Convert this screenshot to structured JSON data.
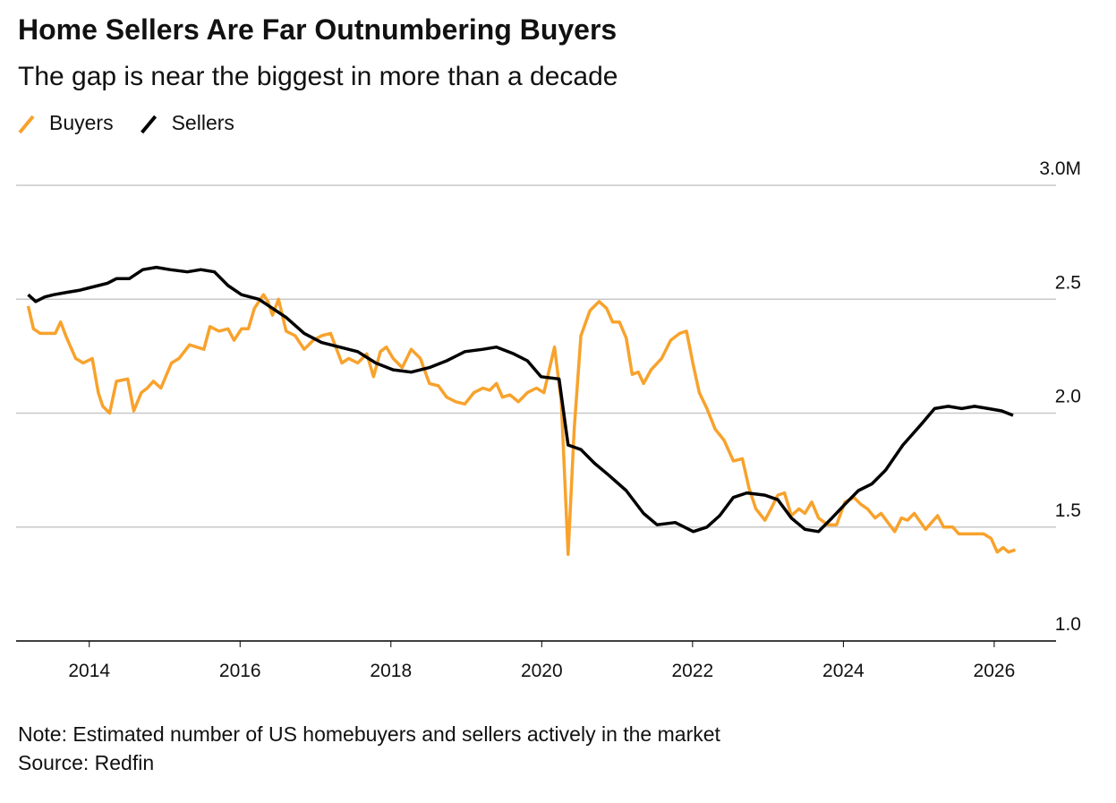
{
  "chart_data": {
    "type": "line",
    "title": "Home Sellers Are Far Outnumbering Buyers",
    "subtitle": "The gap is near the biggest in more than a decade",
    "note": "Note: Estimated number of US homebuyers and sellers actively in the market",
    "source": "Source: Redfin",
    "xlim": [
      2013.03,
      2026.82
    ],
    "xticks": [
      2014,
      2016,
      2018,
      2020,
      2022,
      2024,
      2026
    ],
    "ylim": [
      1,
      3
    ],
    "yticks": [
      {
        "value": 1,
        "label": "1.0"
      },
      1.5,
      {
        "value": 2,
        "label": "2.0"
      },
      2.5,
      {
        "value": 3,
        "label": "3.0M"
      }
    ],
    "grid": true,
    "series": [
      {
        "name": "Buyers",
        "color": "#f8a22c",
        "x": [
          2013.19,
          2013.26,
          2013.35,
          2013.47,
          2013.55,
          2013.62,
          2013.7,
          2013.82,
          2013.92,
          2014.04,
          2014.12,
          2014.18,
          2014.27,
          2014.36,
          2014.51,
          2014.59,
          2014.69,
          2014.77,
          2014.85,
          2014.95,
          2015.09,
          2015.19,
          2015.33,
          2015.52,
          2015.6,
          2015.72,
          2015.84,
          2015.92,
          2016.02,
          2016.11,
          2016.19,
          2016.31,
          2016.37,
          2016.43,
          2016.51,
          2016.61,
          2016.73,
          2016.85,
          2016.97,
          2017.08,
          2017.2,
          2017.35,
          2017.44,
          2017.56,
          2017.68,
          2017.77,
          2017.86,
          2017.94,
          2018.03,
          2018.15,
          2018.27,
          2018.39,
          2018.51,
          2018.63,
          2018.74,
          2018.86,
          2018.98,
          2019.1,
          2019.22,
          2019.31,
          2019.4,
          2019.48,
          2019.58,
          2019.69,
          2019.81,
          2019.93,
          2020.03,
          2020.17,
          2020.26,
          2020.35,
          2020.43,
          2020.52,
          2020.64,
          2020.76,
          2020.86,
          2020.94,
          2021.03,
          2021.12,
          2021.2,
          2021.28,
          2021.35,
          2021.45,
          2021.59,
          2021.71,
          2021.83,
          2021.92,
          2022.01,
          2022.09,
          2022.19,
          2022.3,
          2022.42,
          2022.54,
          2022.66,
          2022.75,
          2022.84,
          2022.96,
          2023.04,
          2023.13,
          2023.22,
          2023.31,
          2023.41,
          2023.49,
          2023.58,
          2023.67,
          2023.79,
          2023.91,
          2024.02,
          2024.14,
          2024.23,
          2024.32,
          2024.42,
          2024.5,
          2024.68,
          2024.77,
          2024.85,
          2024.94,
          2025.09,
          2025.25,
          2025.33,
          2025.45,
          2025.53,
          2025.63,
          2025.74,
          2025.86,
          2025.96,
          2026.04,
          2026.12,
          2026.19,
          2026.28
        ],
        "values": [
          2.47,
          2.37,
          2.35,
          2.35,
          2.35,
          2.4,
          2.33,
          2.24,
          2.22,
          2.24,
          2.09,
          2.03,
          2.0,
          2.14,
          2.15,
          2.01,
          2.09,
          2.11,
          2.14,
          2.11,
          2.22,
          2.24,
          2.3,
          2.28,
          2.38,
          2.36,
          2.37,
          2.32,
          2.37,
          2.37,
          2.46,
          2.52,
          2.49,
          2.43,
          2.5,
          2.36,
          2.34,
          2.28,
          2.32,
          2.34,
          2.35,
          2.22,
          2.24,
          2.22,
          2.26,
          2.16,
          2.27,
          2.29,
          2.24,
          2.2,
          2.28,
          2.24,
          2.13,
          2.12,
          2.07,
          2.05,
          2.04,
          2.09,
          2.11,
          2.1,
          2.13,
          2.07,
          2.08,
          2.05,
          2.09,
          2.11,
          2.09,
          2.29,
          2.05,
          1.38,
          1.93,
          2.34,
          2.45,
          2.49,
          2.46,
          2.4,
          2.4,
          2.33,
          2.17,
          2.18,
          2.13,
          2.19,
          2.24,
          2.32,
          2.35,
          2.36,
          2.21,
          2.09,
          2.02,
          1.93,
          1.88,
          1.79,
          1.8,
          1.67,
          1.58,
          1.53,
          1.58,
          1.64,
          1.65,
          1.55,
          1.58,
          1.56,
          1.61,
          1.54,
          1.51,
          1.51,
          1.61,
          1.63,
          1.6,
          1.58,
          1.54,
          1.56,
          1.48,
          1.54,
          1.53,
          1.56,
          1.49,
          1.55,
          1.5,
          1.5,
          1.47,
          1.47,
          1.47,
          1.47,
          1.45,
          1.39,
          1.41,
          1.39,
          1.4
        ]
      },
      {
        "name": "Sellers",
        "color": "#000000",
        "x": [
          2013.19,
          2013.29,
          2013.41,
          2013.53,
          2013.7,
          2013.88,
          2014.0,
          2014.12,
          2014.24,
          2014.36,
          2014.53,
          2014.71,
          2014.89,
          2015.07,
          2015.3,
          2015.48,
          2015.66,
          2015.84,
          2016.02,
          2016.25,
          2016.43,
          2016.61,
          2016.85,
          2017.08,
          2017.32,
          2017.56,
          2017.8,
          2018.03,
          2018.27,
          2018.51,
          2018.74,
          2018.98,
          2019.22,
          2019.4,
          2019.63,
          2019.81,
          2019.99,
          2020.23,
          2020.35,
          2020.52,
          2020.7,
          2020.88,
          2021.12,
          2021.35,
          2021.53,
          2021.77,
          2022.01,
          2022.19,
          2022.36,
          2022.54,
          2022.72,
          2022.96,
          2023.13,
          2023.31,
          2023.49,
          2023.67,
          2023.85,
          2024.02,
          2024.2,
          2024.38,
          2024.56,
          2024.79,
          2025.03,
          2025.21,
          2025.39,
          2025.57,
          2025.74,
          2025.92,
          2026.1,
          2026.25
        ],
        "values": [
          2.52,
          2.49,
          2.51,
          2.52,
          2.53,
          2.54,
          2.55,
          2.56,
          2.57,
          2.59,
          2.59,
          2.63,
          2.64,
          2.63,
          2.62,
          2.63,
          2.62,
          2.56,
          2.52,
          2.5,
          2.46,
          2.42,
          2.35,
          2.31,
          2.29,
          2.27,
          2.22,
          2.19,
          2.18,
          2.2,
          2.23,
          2.27,
          2.28,
          2.29,
          2.26,
          2.23,
          2.16,
          2.15,
          1.86,
          1.84,
          1.78,
          1.73,
          1.66,
          1.56,
          1.51,
          1.52,
          1.48,
          1.5,
          1.55,
          1.63,
          1.65,
          1.64,
          1.62,
          1.54,
          1.49,
          1.48,
          1.54,
          1.6,
          1.66,
          1.69,
          1.75,
          1.86,
          1.95,
          2.02,
          2.03,
          2.02,
          2.03,
          2.02,
          2.01,
          1.99
        ]
      }
    ]
  }
}
